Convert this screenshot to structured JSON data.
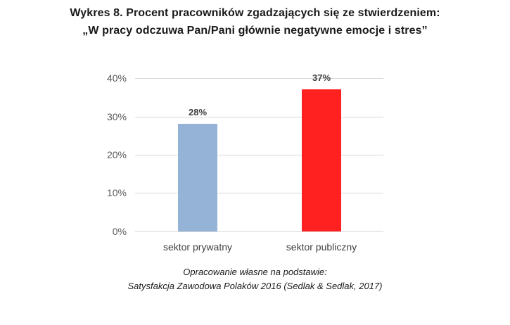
{
  "title": {
    "line1": "Wykres 8. Procent pracowników zgadzających się ze stwierdzeniem:",
    "line2": "„W pracy odczuwa Pan/Pani głównie negatywne emocje i stres”"
  },
  "source": {
    "line1": "Opracowanie własne na podstawie:",
    "line2": "Satysfakcja Zawodowa Polaków 2016 (Sedlak & Sedlak, 2017)"
  },
  "axis": {
    "yticks": [
      "40%",
      "30%",
      "20%",
      "10%",
      "0%"
    ]
  },
  "bars": [
    {
      "category": "sektor prywatny",
      "value": 28,
      "label": "28%",
      "color": "#95b3d7"
    },
    {
      "category": "sektor publiczny",
      "value": 37,
      "label": "37%",
      "color": "#ff2020"
    }
  ],
  "chart_data": {
    "type": "bar",
    "title": "Wykres 8. Procent pracowników zgadzających się ze stwierdzeniem: „W pracy odczuwa Pan/Pani głównie negatywne emocje i stres”",
    "categories": [
      "sektor prywatny",
      "sektor publiczny"
    ],
    "values": [
      28,
      37
    ],
    "data_labels": [
      "28%",
      "37%"
    ],
    "colors": [
      "#95b3d7",
      "#ff2020"
    ],
    "xlabel": "",
    "ylabel": "",
    "ylim": [
      0,
      40
    ],
    "yticks": [
      "0%",
      "10%",
      "20%",
      "30%",
      "40%"
    ],
    "grid": true,
    "legend": null,
    "annotations": [
      "Opracowanie własne na podstawie:",
      "Satysfakcja Zawodowa Polaków 2016 (Sedlak & Sedlak, 2017)"
    ]
  }
}
